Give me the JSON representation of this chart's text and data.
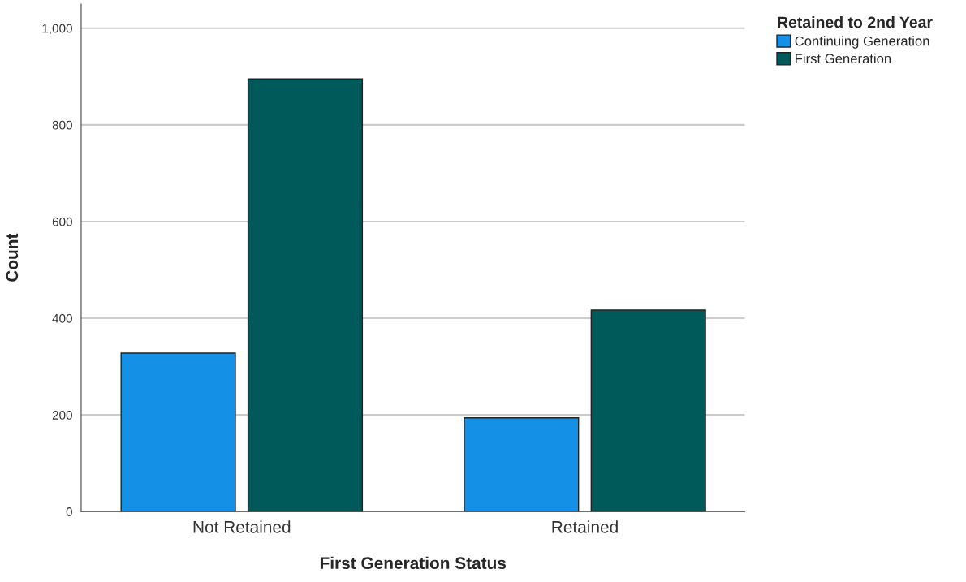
{
  "chart_data": {
    "type": "bar",
    "xlabel": "First Generation Status",
    "ylabel": "Count",
    "legend_title": "Retained to 2nd Year",
    "categories": [
      "Not Retained",
      "Retained"
    ],
    "series": [
      {
        "name": "Continuing Generation",
        "color": "#1490e6",
        "values": [
          328,
          194
        ]
      },
      {
        "name": "First Generation",
        "color": "#005a5a",
        "values": [
          895,
          417
        ]
      }
    ],
    "ylim": [
      0,
      1050
    ],
    "yticks": [
      0,
      200,
      400,
      600,
      800,
      {
        "value": 1000,
        "label": "1,000"
      }
    ],
    "grid": "y",
    "legend": "top right"
  }
}
